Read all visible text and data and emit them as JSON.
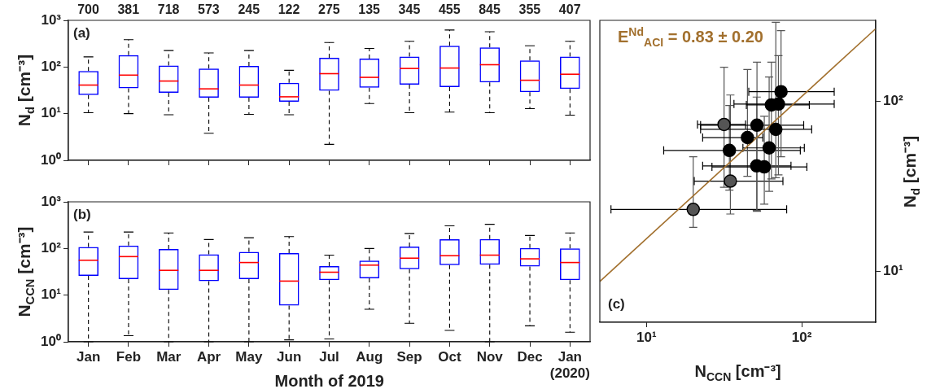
{
  "chart_data": [
    {
      "type": "box",
      "ylabel": "N$_{d}$ [cm⁻³]",
      "tick_labels": "y",
      "color": "#0000ff",
      "categories": [
        null,
        null,
        null,
        null,
        null,
        null,
        null,
        null,
        null,
        null,
        null,
        null,
        null
      ],
      "boxes": [
        {
          "low": 10.5,
          "q1": 25,
          "median": 41,
          "q3": 82,
          "high": 165
        },
        {
          "low": 10,
          "q1": 35,
          "median": 67,
          "q3": 180,
          "high": 385
        },
        {
          "low": 9.5,
          "q1": 28,
          "median": 50,
          "q3": 108,
          "high": 225
        },
        {
          "low": 3.8,
          "q1": 22,
          "median": 34,
          "q3": 93,
          "high": 200
        },
        {
          "low": 9.7,
          "q1": 22,
          "median": 41,
          "q3": 105,
          "high": 225
        },
        {
          "low": 9.5,
          "q1": 18,
          "median": 23,
          "q3": 46,
          "high": 85
        },
        {
          "low": 2.2,
          "q1": 31,
          "median": 72,
          "q3": 158,
          "high": 335
        },
        {
          "low": 16.5,
          "q1": 36,
          "median": 60,
          "q3": 152,
          "high": 250
        },
        {
          "low": 10.5,
          "q1": 42,
          "median": 93,
          "q3": 168,
          "high": 355
        },
        {
          "low": 10.8,
          "q1": 37,
          "median": 95,
          "q3": 285,
          "high": 620
        },
        {
          "low": 10.5,
          "q1": 47,
          "median": 112,
          "q3": 262,
          "high": 570
        },
        {
          "low": 12.8,
          "q1": 29,
          "median": 52,
          "q3": 138,
          "high": 285
        },
        {
          "low": 9.3,
          "q1": 34,
          "median": 70,
          "q3": 168,
          "high": 355
        }
      ],
      "ylim": [
        1,
        1000
      ],
      "log": true,
      "yticks": [
        {
          "value": 1,
          "label": "10⁰"
        },
        {
          "value": 10,
          "label": "10¹"
        },
        {
          "value": 100,
          "label": "10²"
        },
        {
          "value": 1000,
          "label": "10³"
        }
      ],
      "annotations": [
        "(a)",
        "700",
        "381",
        "718",
        "573",
        "245",
        "122",
        "275",
        "135",
        "345",
        "455",
        "845",
        "355",
        "407"
      ]
    },
    {
      "type": "box",
      "ylabel": "N$_{CCN}$ [cm⁻³]",
      "xlabel": "Month of 2019",
      "color": "#0000ff",
      "categories": [
        "Jan",
        "Feb",
        "Mar",
        "Apr",
        "May",
        "Jun",
        "Jul",
        "Aug",
        "Sep",
        "Oct",
        "Nov",
        "Dec",
        "Jan\n(2020)"
      ],
      "boxes": [
        {
          "low": 1,
          "q1": 26,
          "median": 56,
          "q3": 108,
          "high": 225
        },
        {
          "low": 1.35,
          "q1": 22,
          "median": 67,
          "q3": 115,
          "high": 225
        },
        {
          "low": 1,
          "q1": 13,
          "median": 34,
          "q3": 97,
          "high": 215
        },
        {
          "low": 1,
          "q1": 20,
          "median": 34,
          "q3": 75,
          "high": 155
        },
        {
          "low": 1,
          "q1": 22,
          "median": 50,
          "q3": 85,
          "high": 170
        },
        {
          "low": 1.1,
          "q1": 6,
          "median": 20,
          "q3": 80,
          "high": 180
        },
        {
          "low": 1.15,
          "q1": 21,
          "median": 31,
          "q3": 42,
          "high": 72
        },
        {
          "low": 5,
          "q1": 23,
          "median": 44,
          "q3": 55,
          "high": 100
        },
        {
          "low": 2.5,
          "q1": 36,
          "median": 62,
          "q3": 110,
          "high": 210
        },
        {
          "low": 1.75,
          "q1": 44,
          "median": 70,
          "q3": 158,
          "high": 305
        },
        {
          "low": 1,
          "q1": 45,
          "median": 72,
          "q3": 160,
          "high": 330
        },
        {
          "low": 2.2,
          "q1": 41,
          "median": 60,
          "q3": 102,
          "high": 190
        },
        {
          "low": 1.6,
          "q1": 21,
          "median": 50,
          "q3": 100,
          "high": 215
        }
      ],
      "ylim": [
        1,
        1000
      ],
      "log": true,
      "yticks": [
        {
          "value": 1,
          "label": "10⁰"
        },
        {
          "value": 10,
          "label": "10¹"
        },
        {
          "value": 100,
          "label": "10²"
        },
        {
          "value": 1000,
          "label": "10³"
        }
      ],
      "annotations": [
        "(b)"
      ]
    },
    {
      "type": "scatter",
      "xlabel": "N$_{CCN}$ [cm⁻³]",
      "ylabel": "N$_{d}$ [cm⁻³]",
      "log": "xy",
      "xlim": [
        5,
        300
      ],
      "ylim": [
        5,
        300
      ],
      "xticks": [
        {
          "value": 10,
          "label": "10¹"
        },
        {
          "value": 100,
          "label": "10²"
        }
      ],
      "yticks": [
        {
          "value": 10,
          "label": "10¹"
        },
        {
          "value": 100,
          "label": "10²"
        }
      ],
      "series": [
        {
          "type": "scatter",
          "marker": "circle",
          "x": [
            20.0,
            34.7,
            31.6,
            34.2,
            44.7,
            51.5,
            51.3,
            57.4,
            61.7,
            63.8,
            70.8,
            73.6,
            68.1
          ],
          "values": [
            23.1,
            33.9,
            73.1,
            51.4,
            61.2,
            72.4,
            41.7,
            41.1,
            53.2,
            95.3,
            96.4,
            114,
            68.4
          ],
          "colors": [
            "#555555",
            "#555555",
            "#555555",
            "#000000",
            "#000000",
            "#000000",
            "#000000",
            "#000000",
            "#000000",
            "#000000",
            "#000000",
            "#000000",
            "#000000"
          ],
          "errors": [
            [
              18.1,
              47.2
            ],
            [
              21.7,
              109
            ],
            [
              31.2,
              159
            ],
            [
              30,
              94.6
            ],
            [
              36.2,
              154
            ],
            [
              22.5,
              170
            ],
            [
              22.8,
              106
            ],
            [
              24.8,
              81.6
            ],
            [
              29.5,
              139
            ],
            [
              34.9,
              170
            ],
            [
              36.9,
              186
            ],
            [
              47.2,
              261
            ],
            [
              35.5,
              292
            ]
          ],
          "xerrors": [
            [
              5.9,
              80
            ],
            [
              20.3,
              75.7
            ],
            [
              21.3,
              43.5
            ],
            [
              12.9,
              98
            ],
            [
              23,
              56.2
            ],
            [
              22.3,
              103
            ],
            [
              23,
              85.3
            ],
            [
              26.4,
              108
            ],
            [
              41.8,
              104
            ],
            [
              44,
              112
            ],
            [
              36.6,
              162
            ],
            [
              45.6,
              162
            ],
            [
              22.3,
              116
            ]
          ]
        },
        {
          "type": "line",
          "x": [
            5,
            300
          ],
          "values": [
            8.7,
            268
          ],
          "color": "#a2702e",
          "marker": "none"
        }
      ],
      "annotations": [
        "E$^{Nd}$$_{ACI}$ = 0.83 ± 0.20",
        "(c)"
      ]
    }
  ]
}
